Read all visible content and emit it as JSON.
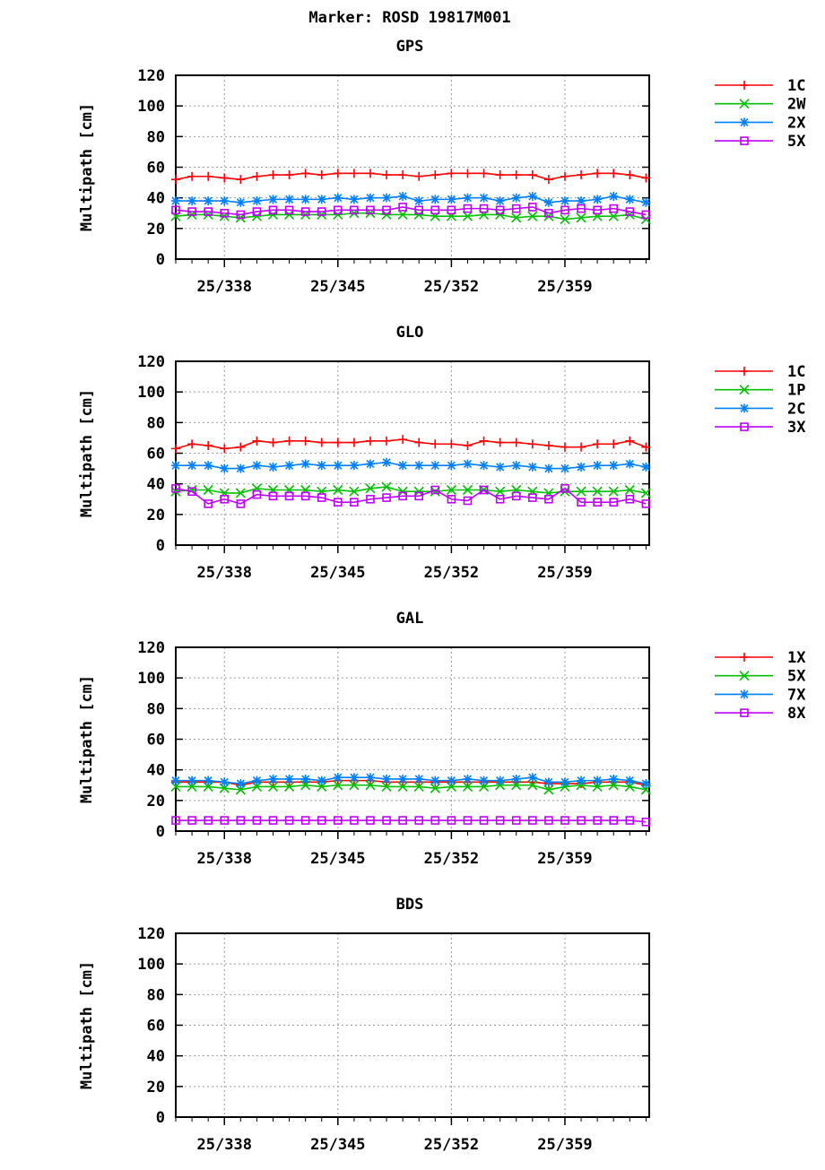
{
  "chart_data": {
    "title": "Marker: ROSD 19817M001",
    "type": "line",
    "x_days": [
      335,
      336,
      337,
      338,
      339,
      340,
      341,
      342,
      343,
      344,
      345,
      346,
      347,
      348,
      349,
      350,
      351,
      352,
      353,
      354,
      355,
      356,
      357,
      358,
      359,
      360,
      361,
      362,
      363,
      364
    ],
    "x_year_prefix": "25",
    "x_ticks": [
      "25/338",
      "25/345",
      "25/352",
      "25/359"
    ],
    "x_tick_days": [
      338,
      345,
      352,
      359
    ],
    "xlim": [
      335,
      364.2
    ],
    "ylim": [
      0,
      120
    ],
    "y_ticks": [
      0,
      20,
      40,
      60,
      80,
      100,
      120
    ],
    "ylabel": "Multipath [cm]",
    "grid": true,
    "legend": "right",
    "colors": [
      "#ff0000",
      "#00c000",
      "#0080ff",
      "#c000ff"
    ],
    "markers": [
      "plus",
      "cross",
      "star",
      "square"
    ],
    "panels": [
      {
        "title": "GPS",
        "series": [
          {
            "name": "1C",
            "values": [
              52,
              54,
              54,
              53,
              52,
              54,
              55,
              55,
              56,
              55,
              56,
              56,
              56,
              55,
              55,
              54,
              55,
              56,
              56,
              56,
              55,
              55,
              55,
              52,
              54,
              55,
              56,
              56,
              55,
              53
            ]
          },
          {
            "name": "2W",
            "values": [
              28,
              29,
              29,
              28,
              27,
              28,
              29,
              29,
              29,
              29,
              29,
              30,
              30,
              29,
              29,
              29,
              28,
              28,
              28,
              29,
              29,
              27,
              28,
              28,
              26,
              27,
              28,
              28,
              29,
              26
            ]
          },
          {
            "name": "2X",
            "values": [
              38,
              38,
              38,
              38,
              37,
              38,
              39,
              39,
              39,
              39,
              40,
              39,
              40,
              40,
              41,
              38,
              39,
              39,
              40,
              40,
              38,
              40,
              41,
              37,
              38,
              38,
              39,
              41,
              39,
              37
            ]
          },
          {
            "name": "5X",
            "values": [
              32,
              31,
              31,
              30,
              29,
              31,
              32,
              32,
              31,
              31,
              32,
              32,
              32,
              32,
              34,
              32,
              32,
              32,
              33,
              33,
              32,
              33,
              34,
              30,
              32,
              33,
              32,
              33,
              31,
              29
            ]
          }
        ]
      },
      {
        "title": "GLO",
        "series": [
          {
            "name": "1C",
            "values": [
              63,
              66,
              65,
              63,
              64,
              68,
              67,
              68,
              68,
              67,
              67,
              67,
              68,
              68,
              69,
              67,
              66,
              66,
              65,
              68,
              67,
              67,
              66,
              65,
              64,
              64,
              66,
              66,
              68,
              64
            ]
          },
          {
            "name": "1P",
            "values": [
              35,
              36,
              36,
              34,
              34,
              37,
              36,
              36,
              36,
              35,
              36,
              35,
              37,
              38,
              35,
              35,
              35,
              36,
              36,
              36,
              35,
              36,
              35,
              34,
              35,
              35,
              35,
              35,
              36,
              34
            ]
          },
          {
            "name": "2C",
            "values": [
              52,
              52,
              52,
              50,
              50,
              52,
              51,
              52,
              53,
              52,
              52,
              52,
              53,
              54,
              52,
              52,
              52,
              52,
              53,
              52,
              51,
              52,
              51,
              50,
              50,
              51,
              52,
              52,
              53,
              51
            ]
          },
          {
            "name": "3X",
            "values": [
              37,
              35,
              27,
              30,
              27,
              33,
              32,
              32,
              32,
              31,
              28,
              28,
              30,
              31,
              32,
              32,
              36,
              30,
              29,
              36,
              30,
              32,
              31,
              30,
              37,
              28,
              28,
              28,
              30,
              27
            ]
          }
        ]
      },
      {
        "title": "GAL",
        "series": [
          {
            "name": "1X",
            "values": [
              32,
              32,
              32,
              32,
              30,
              32,
              32,
              32,
              32,
              32,
              33,
              33,
              33,
              32,
              32,
              32,
              32,
              32,
              32,
              32,
              32,
              32,
              32,
              31,
              31,
              31,
              32,
              32,
              32,
              30
            ]
          },
          {
            "name": "5X",
            "values": [
              29,
              29,
              29,
              28,
              27,
              29,
              29,
              29,
              30,
              29,
              30,
              30,
              30,
              29,
              29,
              29,
              28,
              29,
              29,
              29,
              30,
              30,
              30,
              27,
              29,
              30,
              29,
              30,
              29,
              27
            ]
          },
          {
            "name": "7X",
            "values": [
              33,
              33,
              33,
              32,
              31,
              33,
              34,
              34,
              34,
              33,
              35,
              35,
              35,
              34,
              34,
              34,
              33,
              33,
              34,
              33,
              33,
              34,
              35,
              32,
              32,
              33,
              33,
              34,
              33,
              31
            ]
          },
          {
            "name": "8X",
            "values": [
              7,
              7,
              7,
              7,
              7,
              7,
              7,
              7,
              7,
              7,
              7,
              7,
              7,
              7,
              7,
              7,
              7,
              7,
              7,
              7,
              7,
              7,
              7,
              7,
              7,
              7,
              7,
              7,
              7,
              6
            ]
          }
        ]
      },
      {
        "title": "BDS",
        "series": []
      }
    ]
  }
}
